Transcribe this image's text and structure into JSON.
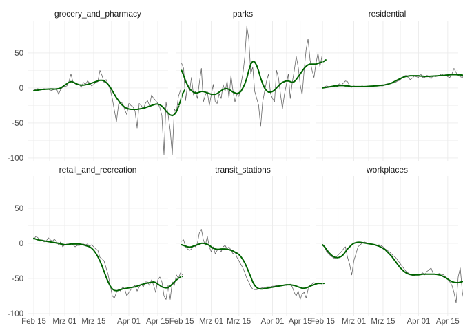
{
  "chart_data": {
    "type": "line",
    "layout": "facet-grid 2x3",
    "grid": true,
    "y_ticks": [
      -100,
      -50,
      0,
      50
    ],
    "ylim": [
      -104,
      96
    ],
    "xlim": [
      "2020-02-12",
      "2020-04-20"
    ],
    "x_ticks": [
      {
        "date": "2020-02-15",
        "label": "Feb 15"
      },
      {
        "date": "2020-03-01",
        "label": "Mrz 01"
      },
      {
        "date": "2020-03-15",
        "label": "Mrz 15"
      },
      {
        "date": "2020-04-01",
        "label": "Apr 01"
      },
      {
        "date": "2020-04-15",
        "label": "Apr 15"
      }
    ],
    "colors": {
      "raw": "#666666",
      "smooth": "#006400",
      "grid": "#ebebeb"
    },
    "panels": [
      {
        "title": "grocery_and_pharmacy",
        "series": [
          {
            "role": "raw",
            "start": "2020-02-15",
            "values": [
              -3,
              -2,
              -1,
              -3,
              -2,
              -1,
              -2,
              -1,
              -4,
              -3,
              -2,
              -1,
              -9,
              -2,
              1,
              2,
              3,
              9,
              20,
              8,
              6,
              4,
              5,
              1,
              8,
              5,
              10,
              7,
              3,
              5,
              8,
              9,
              25,
              18,
              8,
              12,
              5,
              -2,
              -15,
              -32,
              -48,
              -24,
              -20,
              -22,
              -31,
              -38,
              -22,
              -25,
              -27,
              -33,
              -57,
              -22,
              -25,
              -30,
              -22,
              -18,
              -25,
              -10,
              -15,
              -18,
              -22,
              -28,
              -40,
              -95,
              -20,
              -38,
              -60,
              -95,
              -30,
              -35,
              -12,
              -3
            ]
          },
          {
            "role": "smooth",
            "start": "2020-02-15",
            "values": [
              -4,
              -3.5,
              -3,
              -2.5,
              -2,
              -2,
              -1.8,
              -1.6,
              -1.5,
              -1.5,
              -1.6,
              -1.5,
              -1,
              0,
              2,
              4,
              6,
              8,
              9,
              8.5,
              7,
              5.5,
              4.5,
              4,
              4,
              4.5,
              5,
              6,
              7,
              8,
              9,
              10,
              11,
              11,
              10,
              8,
              5,
              1,
              -4,
              -9,
              -14,
              -18,
              -22,
              -25,
              -27.5,
              -29,
              -30,
              -30.5,
              -30.5,
              -30.5,
              -30.5,
              -30,
              -29.5,
              -29,
              -28,
              -27,
              -26,
              -25,
              -24,
              -23,
              -23,
              -24,
              -26,
              -29,
              -33,
              -36,
              -38.5,
              -39.5,
              -38,
              -34,
              -27,
              -18,
              -8,
              -3
            ]
          }
        ]
      },
      {
        "title": "parks",
        "series": [
          {
            "role": "raw",
            "start": "2020-02-15",
            "values": [
              35,
              28,
              -18,
              5,
              -5,
              15,
              -10,
              -5,
              -15,
              8,
              28,
              -20,
              -10,
              -5,
              -25,
              -10,
              5,
              -20,
              -22,
              -8,
              -15,
              5,
              -5,
              10,
              -15,
              18,
              -5,
              -20,
              -8,
              -12,
              5,
              20,
              45,
              88,
              70,
              20,
              30,
              -5,
              -15,
              -25,
              -55,
              -20,
              -5,
              10,
              20,
              -8,
              -15,
              -20,
              25,
              15,
              -8,
              -30,
              -10,
              5,
              20,
              -15,
              8,
              25,
              45,
              30,
              5,
              -10,
              25,
              55,
              70,
              40,
              25,
              15,
              35,
              50,
              30,
              45
            ]
          },
          {
            "role": "smooth",
            "start": "2020-02-15",
            "values": [
              25,
              18,
              10,
              4,
              -1,
              -4,
              -6,
              -7,
              -7,
              -6,
              -5,
              -5,
              -6,
              -7,
              -8,
              -9,
              -9,
              -9,
              -8,
              -6,
              -4,
              -2,
              -1,
              -1,
              -2,
              -4,
              -6,
              -7,
              -8,
              -7,
              -5,
              0,
              6,
              14,
              25,
              34,
              38,
              37,
              32,
              24,
              14,
              6,
              0,
              -4,
              -6,
              -6,
              -5,
              -3,
              0,
              3,
              6,
              8,
              9,
              10,
              10,
              9,
              8,
              9,
              12,
              16,
              20,
              24,
              28,
              31,
              33,
              34,
              34,
              34,
              34,
              35,
              36,
              37,
              38,
              40
            ]
          }
        ]
      },
      {
        "title": "residential",
        "series": [
          {
            "role": "raw",
            "start": "2020-02-15",
            "values": [
              0,
              2,
              3,
              2,
              1,
              3,
              4,
              2,
              6,
              4,
              7,
              10,
              9,
              3,
              1,
              3,
              2,
              2,
              2,
              3,
              2,
              2,
              3,
              3,
              3,
              3,
              4,
              4,
              3,
              3,
              5,
              6,
              6,
              7,
              7,
              8,
              10,
              11,
              14,
              17,
              18,
              15,
              12,
              14,
              17,
              16,
              15,
              20,
              15,
              15,
              18,
              17,
              13,
              18,
              16,
              17,
              18,
              20,
              18,
              19,
              16,
              15,
              20,
              28,
              22,
              18,
              16,
              15,
              19,
              20,
              25,
              26,
              18,
              17,
              16
            ]
          },
          {
            "role": "smooth",
            "start": "2020-02-15",
            "values": [
              0,
              0.5,
              1,
              1.5,
              2,
              2.5,
              3,
              3,
              3.5,
              3.5,
              3.5,
              3,
              3,
              2.5,
              2,
              2,
              2,
              2,
              2,
              2,
              2,
              2.2,
              2.4,
              2.6,
              2.8,
              3,
              3.2,
              3.5,
              3.8,
              4,
              4.5,
              5,
              6,
              7,
              8.5,
              10,
              11.5,
              13,
              14.5,
              15.5,
              16.5,
              17,
              17.5,
              17.5,
              17.5,
              17.5,
              17.5,
              17,
              16.8,
              16.5,
              16.5,
              16.6,
              16.8,
              17,
              17.2,
              17.4,
              17.6,
              17.8,
              18,
              18.2,
              18.5,
              18.8,
              19,
              19,
              19,
              18.8,
              18.6,
              18.4,
              18.2,
              18,
              17.8,
              17.6,
              17.5,
              17.4,
              17.3
            ]
          }
        ]
      },
      {
        "title": "retail_and_recreation",
        "series": [
          {
            "role": "raw",
            "start": "2020-02-15",
            "values": [
              5,
              10,
              8,
              3,
              5,
              2,
              3,
              8,
              5,
              3,
              6,
              2,
              -2,
              2,
              -5,
              -2,
              -1,
              -1,
              0,
              -2,
              -5,
              -3,
              -3,
              -2,
              -1,
              -2,
              -1,
              -4,
              -2,
              -5,
              -8,
              -10,
              -20,
              -22,
              -25,
              -35,
              -45,
              -60,
              -75,
              -78,
              -70,
              -65,
              -68,
              -62,
              -65,
              -75,
              -70,
              -66,
              -62,
              -60,
              -68,
              -62,
              -58,
              -62,
              -55,
              -55,
              -60,
              -52,
              -60,
              -70,
              -52,
              -48,
              -55,
              -75,
              -80,
              -60,
              -80,
              -55,
              -60,
              -45,
              -50,
              -42,
              -45
            ]
          },
          {
            "role": "smooth",
            "start": "2020-02-15",
            "values": [
              7,
              6,
              5,
              4.5,
              4,
              3.5,
              3,
              2.5,
              2,
              1.5,
              1,
              0.5,
              0,
              -1,
              -1.5,
              -2,
              -2,
              -1.5,
              -1,
              -1,
              -1,
              -1,
              -1,
              -1.5,
              -2,
              -3,
              -4,
              -5,
              -7,
              -10,
              -14,
              -19,
              -25,
              -32,
              -40,
              -48,
              -55,
              -61,
              -65,
              -67,
              -67.5,
              -67,
              -66,
              -65,
              -64.5,
              -64,
              -63.5,
              -63,
              -62.5,
              -62,
              -61,
              -60,
              -59,
              -58,
              -57,
              -56.5,
              -56,
              -55.5,
              -55,
              -56,
              -58,
              -60,
              -62,
              -63,
              -63.5,
              -63,
              -61,
              -58,
              -55,
              -52,
              -50,
              -48,
              -47
            ]
          }
        ]
      },
      {
        "title": "transit_stations",
        "series": [
          {
            "role": "raw",
            "start": "2020-02-15",
            "values": [
              3,
              5,
              -5,
              -8,
              -10,
              -8,
              -3,
              -5,
              0,
              15,
              20,
              5,
              -3,
              10,
              -5,
              -12,
              -5,
              -15,
              -10,
              -8,
              -12,
              -5,
              -3,
              -8,
              -5,
              -10,
              -15,
              -12,
              -20,
              -25,
              -30,
              -35,
              -42,
              -50,
              -55,
              -62,
              -65,
              -66,
              -66,
              -65,
              -64,
              -63,
              -63,
              -62,
              -62,
              -62,
              -61,
              -61,
              -60,
              -61,
              -60,
              -60,
              -59,
              -60,
              -59,
              -58,
              -62,
              -70,
              -75,
              -68,
              -80,
              -72,
              -70,
              -78,
              -66,
              -60,
              -58,
              -56,
              -58,
              -56,
              -57,
              -58,
              -57
            ]
          },
          {
            "role": "smooth",
            "start": "2020-02-15",
            "values": [
              -2,
              -3,
              -4,
              -5,
              -5.5,
              -5,
              -4,
              -3,
              -2,
              -1,
              0,
              0,
              -0.5,
              -1.5,
              -3,
              -5,
              -7,
              -8,
              -8.5,
              -8.5,
              -8,
              -8,
              -8,
              -8.5,
              -9,
              -10,
              -11,
              -12.5,
              -14,
              -16,
              -19,
              -23,
              -28,
              -34,
              -41,
              -48,
              -55,
              -60,
              -63,
              -64.5,
              -65,
              -65,
              -64.5,
              -64,
              -63.5,
              -63,
              -62.5,
              -62,
              -61.5,
              -61,
              -60.5,
              -60,
              -59.5,
              -59,
              -59,
              -59,
              -59.5,
              -60,
              -61,
              -62,
              -63,
              -64,
              -64,
              -63.5,
              -62.5,
              -61,
              -60,
              -59,
              -58,
              -57,
              -57,
              -57,
              -57
            ]
          }
        ]
      },
      {
        "title": "workplaces",
        "series": [
          {
            "role": "raw",
            "start": "2020-02-15",
            "values": [
              -2,
              -5,
              -12,
              -15,
              -18,
              -20,
              -22,
              -18,
              -15,
              -12,
              -8,
              -5,
              -20,
              -30,
              -45,
              -25,
              -15,
              -5,
              -2,
              0,
              2,
              1,
              0,
              -1,
              -1,
              -2,
              -3,
              -2,
              -3,
              -5,
              -8,
              -10,
              -12,
              -15,
              -18,
              -20,
              -24,
              -28,
              -32,
              -36,
              -40,
              -42,
              -44,
              -46,
              -46,
              -45,
              -45,
              -44,
              -42,
              -45,
              -40,
              -38,
              -35,
              -43,
              -45,
              -44,
              -43,
              -44,
              -45,
              -48,
              -50,
              -55,
              -60,
              -70,
              -85,
              -48,
              -35,
              -70,
              -85,
              -50,
              -48,
              -47,
              -46,
              -45
            ]
          },
          {
            "role": "smooth",
            "start": "2020-02-15",
            "values": [
              -2,
              -5,
              -9,
              -13,
              -16,
              -18.5,
              -20,
              -20.5,
              -20,
              -18.5,
              -16,
              -12,
              -8,
              -5,
              -2,
              0,
              1,
              1.5,
              1.5,
              1,
              0.5,
              0,
              -0.5,
              -1,
              -1.5,
              -2,
              -3,
              -4,
              -5.5,
              -7,
              -9,
              -12,
              -15,
              -18,
              -22,
              -26,
              -30,
              -34,
              -37,
              -40,
              -42,
              -43.5,
              -44.5,
              -45,
              -45,
              -45,
              -45,
              -44.5,
              -44,
              -44,
              -44,
              -44,
              -44,
              -44,
              -44,
              -44.5,
              -45,
              -46,
              -47.5,
              -49,
              -51,
              -53,
              -54.5,
              -55.5,
              -56,
              -56,
              -55.5,
              -54.5,
              -53,
              -51,
              -49,
              -47,
              -46
            ]
          }
        ]
      }
    ]
  }
}
